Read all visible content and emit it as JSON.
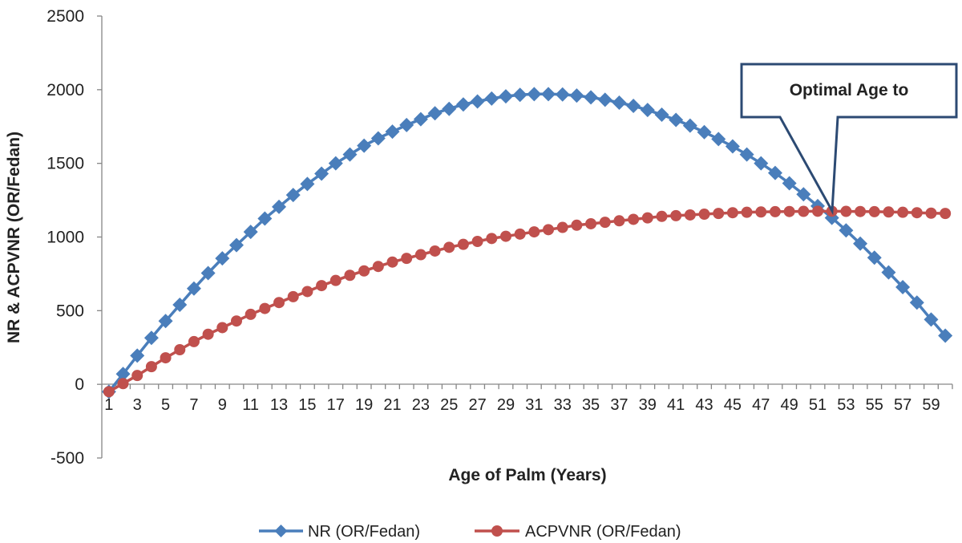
{
  "chart_data": {
    "type": "line",
    "xlabel": "Age of Palm (Years)",
    "ylabel": "NR & ACPVNR (OR/Fedan)",
    "xlim": [
      1,
      60
    ],
    "ylim": [
      -500,
      2500
    ],
    "y_ticks": [
      "-500",
      "0",
      "500",
      "1000",
      "1500",
      "2000",
      "2500"
    ],
    "y_tick_values": [
      -500,
      0,
      500,
      1000,
      1500,
      2000,
      2500
    ],
    "x_tick_labels": [
      "1",
      "3",
      "5",
      "7",
      "9",
      "11",
      "13",
      "15",
      "17",
      "19",
      "21",
      "23",
      "25",
      "27",
      "29",
      "31",
      "33",
      "35",
      "37",
      "39",
      "41",
      "43",
      "45",
      "47",
      "49",
      "51",
      "53",
      "55",
      "57",
      "59"
    ],
    "legend_position": "bottom",
    "grid": false,
    "series": [
      {
        "name": "NR (OR/Fedan)",
        "color": "#4a7ebb",
        "marker": "diamond",
        "x": [
          1,
          2,
          3,
          4,
          5,
          6,
          7,
          8,
          9,
          10,
          11,
          12,
          13,
          14,
          15,
          16,
          17,
          18,
          19,
          20,
          21,
          22,
          23,
          24,
          25,
          26,
          27,
          28,
          29,
          30,
          31,
          32,
          33,
          34,
          35,
          36,
          37,
          38,
          39,
          40,
          41,
          42,
          43,
          44,
          45,
          46,
          47,
          48,
          49,
          50,
          51,
          52,
          53,
          54,
          55,
          56,
          57,
          58,
          59,
          60
        ],
        "values": [
          -50,
          70,
          195,
          315,
          430,
          540,
          650,
          755,
          855,
          945,
          1035,
          1125,
          1205,
          1285,
          1360,
          1430,
          1500,
          1560,
          1620,
          1670,
          1715,
          1760,
          1800,
          1840,
          1870,
          1900,
          1920,
          1940,
          1955,
          1965,
          1970,
          1970,
          1968,
          1960,
          1948,
          1932,
          1912,
          1890,
          1862,
          1830,
          1795,
          1756,
          1712,
          1665,
          1615,
          1560,
          1500,
          1435,
          1365,
          1290,
          1210,
          1130,
          1045,
          955,
          860,
          760,
          660,
          555,
          440,
          330
        ]
      },
      {
        "name": "ACPVNR (OR/Fedan)",
        "color": "#c0504d",
        "marker": "circle",
        "x": [
          1,
          2,
          3,
          4,
          5,
          6,
          7,
          8,
          9,
          10,
          11,
          12,
          13,
          14,
          15,
          16,
          17,
          18,
          19,
          20,
          21,
          22,
          23,
          24,
          25,
          26,
          27,
          28,
          29,
          30,
          31,
          32,
          33,
          34,
          35,
          36,
          37,
          38,
          39,
          40,
          41,
          42,
          43,
          44,
          45,
          46,
          47,
          48,
          49,
          50,
          51,
          52,
          53,
          54,
          55,
          56,
          57,
          58,
          59,
          60
        ],
        "values": [
          -50,
          5,
          60,
          120,
          180,
          235,
          290,
          340,
          385,
          430,
          475,
          515,
          555,
          595,
          630,
          670,
          705,
          740,
          770,
          800,
          830,
          855,
          880,
          905,
          930,
          950,
          970,
          990,
          1005,
          1020,
          1035,
          1050,
          1065,
          1080,
          1090,
          1100,
          1110,
          1120,
          1130,
          1140,
          1145,
          1150,
          1155,
          1160,
          1165,
          1168,
          1170,
          1172,
          1173,
          1174,
          1175,
          1175,
          1174,
          1173,
          1172,
          1170,
          1168,
          1165,
          1162,
          1160
        ]
      }
    ],
    "annotation": {
      "text": "Optimal Age to",
      "target_x": 51.5,
      "target_y": 1175
    }
  }
}
